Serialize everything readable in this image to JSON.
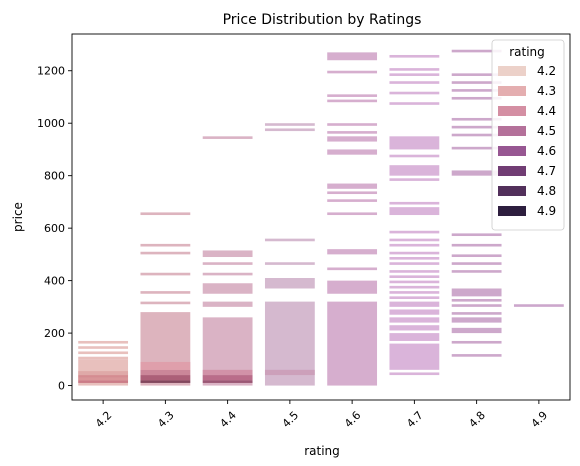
{
  "chart_data": {
    "type": "histogram2d",
    "title": "Price Distribution by Ratings",
    "xlabel": "rating",
    "ylabel": "price",
    "xlim": [
      4.15,
      4.95
    ],
    "ylim": [
      -55,
      1340
    ],
    "x_ticks": [
      "4.2",
      "4.3",
      "4.4",
      "4.5",
      "4.6",
      "4.7",
      "4.8",
      "4.9"
    ],
    "y_ticks": [
      0,
      200,
      400,
      600,
      800,
      1000,
      1200
    ],
    "legend": {
      "title": "rating",
      "position": "top-right",
      "entries": [
        {
          "label": "4.2",
          "color": "#ecd1c9"
        },
        {
          "label": "4.3",
          "color": "#e4aeb0"
        },
        {
          "label": "4.4",
          "color": "#d48fa3"
        },
        {
          "label": "4.5",
          "color": "#b4719a"
        },
        {
          "label": "4.6",
          "color": "#975792"
        },
        {
          "label": "4.7",
          "color": "#713d74"
        },
        {
          "label": "4.8",
          "color": "#52305b"
        },
        {
          "label": "4.9",
          "color": "#2d1e3e"
        }
      ]
    },
    "columns": [
      {
        "rating": "4.2",
        "color": "#e7bdb9",
        "bins": [
          [
            120,
            130
          ],
          [
            140,
            150
          ],
          [
            160,
            170
          ],
          [
            100,
            110
          ],
          [
            0,
            100
          ]
        ],
        "dense": [
          [
            10,
            20,
            "#c36a7a"
          ],
          [
            20,
            30,
            "#d48a8e"
          ],
          [
            30,
            40,
            "#cf7e86"
          ],
          [
            40,
            55,
            "#dca2a2"
          ]
        ]
      },
      {
        "rating": "4.3",
        "color": "#dbb0ba",
        "bins": [
          [
            650,
            660
          ],
          [
            530,
            540
          ],
          [
            500,
            510
          ],
          [
            420,
            430
          ],
          [
            350,
            360
          ],
          [
            310,
            320
          ],
          [
            0,
            280
          ]
        ],
        "dense": [
          [
            10,
            20,
            "#6b2c45"
          ],
          [
            20,
            40,
            "#a04a66"
          ],
          [
            40,
            60,
            "#c77a90"
          ],
          [
            60,
            90,
            "#e09aa6"
          ]
        ]
      },
      {
        "rating": "4.4",
        "color": "#d8afc2",
        "bins": [
          [
            940,
            950
          ],
          [
            490,
            515
          ],
          [
            460,
            470
          ],
          [
            420,
            430
          ],
          [
            350,
            390
          ],
          [
            300,
            320
          ],
          [
            0,
            260
          ]
        ],
        "dense": [
          [
            10,
            20,
            "#8a4060"
          ],
          [
            20,
            40,
            "#b25b7a"
          ],
          [
            40,
            60,
            "#cf8aa0"
          ]
        ]
      },
      {
        "rating": "4.5",
        "color": "#d3b5cc",
        "bins": [
          [
            990,
            1000
          ],
          [
            970,
            980
          ],
          [
            550,
            560
          ],
          [
            460,
            470
          ],
          [
            370,
            410
          ],
          [
            0,
            320
          ]
        ],
        "dense": [
          [
            40,
            60,
            "#c99ab4"
          ]
        ]
      },
      {
        "rating": "4.6",
        "color": "#d4aacb",
        "bins": [
          [
            1240,
            1270
          ],
          [
            1190,
            1200
          ],
          [
            1100,
            1110
          ],
          [
            1080,
            1090
          ],
          [
            990,
            1000
          ],
          [
            960,
            970
          ],
          [
            930,
            950
          ],
          [
            880,
            900
          ],
          [
            750,
            770
          ],
          [
            730,
            740
          ],
          [
            700,
            710
          ],
          [
            650,
            660
          ],
          [
            500,
            520
          ],
          [
            440,
            450
          ],
          [
            350,
            400
          ],
          [
            0,
            320
          ]
        ],
        "dense": []
      },
      {
        "rating": "4.7",
        "color": "#d8b0d8",
        "bins": [
          [
            1250,
            1260
          ],
          [
            1200,
            1210
          ],
          [
            1180,
            1190
          ],
          [
            1150,
            1160
          ],
          [
            1110,
            1120
          ],
          [
            1070,
            1080
          ],
          [
            900,
            950
          ],
          [
            870,
            880
          ],
          [
            800,
            840
          ],
          [
            780,
            790
          ],
          [
            690,
            700
          ],
          [
            650,
            680
          ],
          [
            580,
            590
          ],
          [
            550,
            560
          ],
          [
            530,
            540
          ],
          [
            500,
            510
          ],
          [
            480,
            490
          ],
          [
            460,
            470
          ],
          [
            430,
            440
          ],
          [
            410,
            420
          ],
          [
            390,
            400
          ],
          [
            370,
            380
          ],
          [
            350,
            360
          ],
          [
            330,
            340
          ],
          [
            300,
            320
          ],
          [
            270,
            290
          ],
          [
            240,
            260
          ],
          [
            210,
            230
          ],
          [
            170,
            200
          ],
          [
            60,
            160
          ],
          [
            40,
            50
          ]
        ],
        "dense": []
      },
      {
        "rating": "4.8",
        "color": "#caa3c8",
        "bins": [
          [
            1270,
            1280
          ],
          [
            1180,
            1190
          ],
          [
            1150,
            1160
          ],
          [
            1120,
            1130
          ],
          [
            1090,
            1100
          ],
          [
            1010,
            1020
          ],
          [
            980,
            990
          ],
          [
            950,
            960
          ],
          [
            900,
            910
          ],
          [
            800,
            820
          ],
          [
            570,
            580
          ],
          [
            530,
            540
          ],
          [
            490,
            500
          ],
          [
            460,
            470
          ],
          [
            430,
            440
          ],
          [
            340,
            370
          ],
          [
            320,
            330
          ],
          [
            300,
            310
          ],
          [
            270,
            280
          ],
          [
            240,
            260
          ],
          [
            200,
            220
          ],
          [
            160,
            170
          ],
          [
            110,
            120
          ]
        ],
        "dense": []
      },
      {
        "rating": "4.9",
        "color": "#c9a2c9",
        "bins": [
          [
            300,
            310
          ]
        ],
        "dense": []
      }
    ]
  }
}
